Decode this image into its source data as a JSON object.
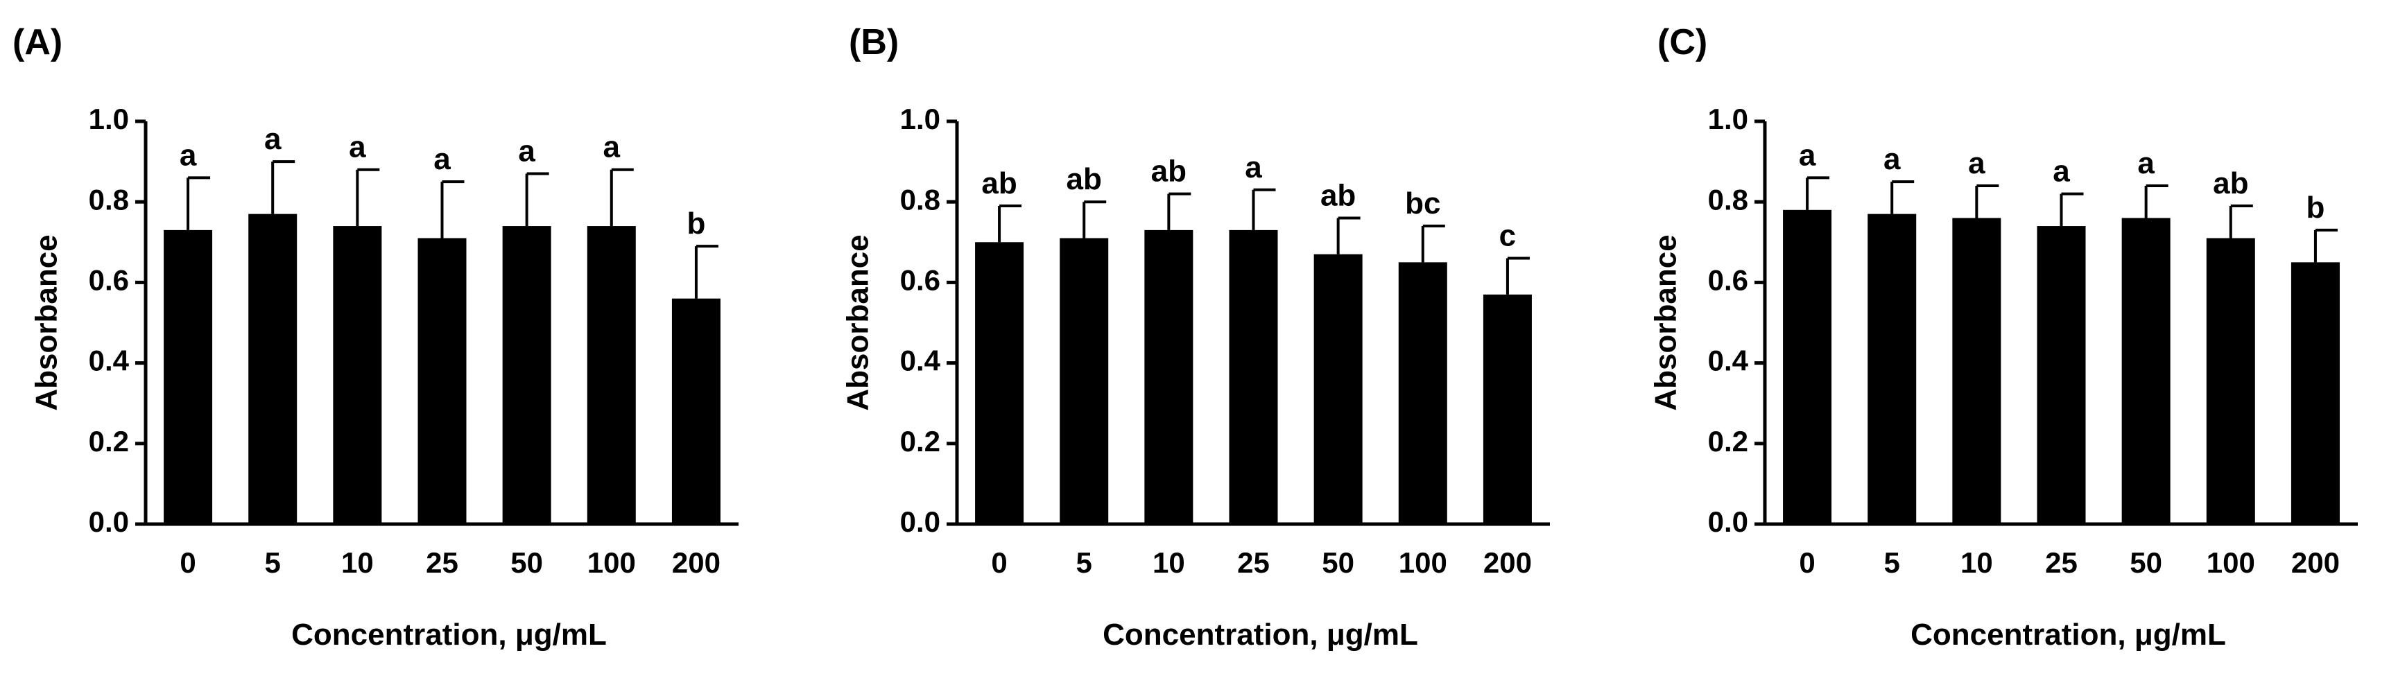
{
  "chart_data": [
    {
      "type": "bar",
      "panel_label": "(A)",
      "categories": [
        "0",
        "5",
        "10",
        "25",
        "50",
        "100",
        "200"
      ],
      "values": [
        0.73,
        0.77,
        0.74,
        0.71,
        0.74,
        0.74,
        0.56
      ],
      "error": [
        0.13,
        0.13,
        0.14,
        0.14,
        0.13,
        0.14,
        0.13
      ],
      "significance": [
        "a",
        "a",
        "a",
        "a",
        "a",
        "a",
        "b"
      ],
      "xlabel": "Concentration, μg/mL",
      "ylabel": "Absorbance",
      "ylim": [
        0,
        1.0
      ],
      "yticks": [
        "0.0",
        "0.2",
        "0.4",
        "0.6",
        "0.8",
        "1.0"
      ],
      "bar_color": "#000000"
    },
    {
      "type": "bar",
      "panel_label": "(B)",
      "categories": [
        "0",
        "5",
        "10",
        "25",
        "50",
        "100",
        "200"
      ],
      "values": [
        0.7,
        0.71,
        0.73,
        0.73,
        0.67,
        0.65,
        0.57
      ],
      "error": [
        0.09,
        0.09,
        0.09,
        0.1,
        0.09,
        0.09,
        0.09
      ],
      "significance": [
        "ab",
        "ab",
        "ab",
        "a",
        "ab",
        "bc",
        "c"
      ],
      "xlabel": "Concentration, μg/mL",
      "ylabel": "Absorbance",
      "ylim": [
        0,
        1.0
      ],
      "yticks": [
        "0.0",
        "0.2",
        "0.4",
        "0.6",
        "0.8",
        "1.0"
      ],
      "bar_color": "#000000"
    },
    {
      "type": "bar",
      "panel_label": "(C)",
      "categories": [
        "0",
        "5",
        "10",
        "25",
        "50",
        "100",
        "200"
      ],
      "values": [
        0.78,
        0.77,
        0.76,
        0.74,
        0.76,
        0.71,
        0.65
      ],
      "error": [
        0.08,
        0.08,
        0.08,
        0.08,
        0.08,
        0.08,
        0.08
      ],
      "significance": [
        "a",
        "a",
        "a",
        "a",
        "a",
        "ab",
        "b"
      ],
      "xlabel": "Concentration, μg/mL",
      "ylabel": "Absorbance",
      "ylim": [
        0,
        1.0
      ],
      "yticks": [
        "0.0",
        "0.2",
        "0.4",
        "0.6",
        "0.8",
        "1.0"
      ],
      "bar_color": "#000000"
    }
  ]
}
